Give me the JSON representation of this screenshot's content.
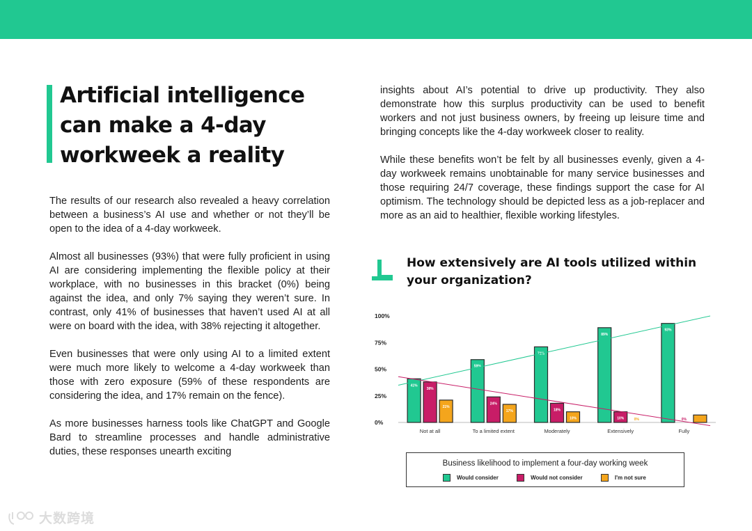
{
  "colors": {
    "accent": "#21c891",
    "would_consider": "#21c891",
    "would_not_consider": "#c81d67",
    "not_sure": "#f4a51c",
    "trend_green": "#21c891",
    "trend_pink": "#c81d67"
  },
  "title": "Artificial intelligence can make a 4-day workweek a reality",
  "left_column": {
    "paragraphs": [
      "The results of our research also revealed a heavy correlation between a business’s AI use and whether or not they’ll be open to the idea of a 4-day workweek.",
      "Almost all businesses (93%) that were fully proficient in using AI are considering implementing the flexible policy at their workplace, with no businesses in this bracket (0%) being against the idea, and only 7% saying they weren’t sure. In contrast, only 41% of businesses that haven’t used AI at all were on board with the idea, with 38% rejecting it altogether.",
      "Even businesses that were only using AI to a limited extent were much more likely to welcome a 4-day workweek than those with zero exposure (59% of these respondents are considering the idea, and 17% remain on the fence).",
      "As more businesses harness tools like ChatGPT and Google Bard to streamline processes and handle administrative duties, these responses unearth exciting"
    ]
  },
  "right_column": {
    "paragraphs": [
      "insights about AI’s potential to drive up productivity. They also demonstrate how this surplus productivity can be used to benefit workers and not just business owners, by freeing up leisure time and bringing concepts like the 4-day workweek closer to reality.",
      "While these benefits won’t be felt by all businesses evenly, given a 4-day workweek remains unobtainable for many service businesses and those requiring 24/7 coverage, these findings support the case for AI optimism. The technology should be depicted less as a job-replacer and more as an aid to healthier, flexible working lifestyles."
    ]
  },
  "chart_heading": "How extensively are AI tools utilized within your organization?",
  "chart_data": {
    "type": "bar",
    "title": "How extensively are AI tools utilized within your organization?",
    "categories": [
      "Not at all",
      "To a limited extent",
      "Moderately",
      "Extensively",
      "Fully"
    ],
    "series": [
      {
        "name": "Would consider",
        "values": [
          41,
          59,
          71,
          89,
          93
        ],
        "labels": [
          "41%",
          "59%",
          "71%",
          "89%",
          "93%"
        ]
      },
      {
        "name": "Would not consider",
        "values": [
          38,
          24,
          18,
          10,
          0
        ],
        "labels": [
          "38%",
          "24%",
          "18%",
          "10%",
          "0%"
        ]
      },
      {
        "name": "I'm not sure",
        "values": [
          21,
          17,
          10,
          0,
          7
        ],
        "labels": [
          "21%",
          "17%",
          "10%",
          "0%",
          "7%"
        ]
      }
    ],
    "yticks": [
      "0%",
      "25%",
      "50%",
      "75%",
      "100%"
    ],
    "ylim": [
      0,
      100
    ],
    "trendlines": [
      {
        "series": "Would consider",
        "start": 35,
        "end": 100
      },
      {
        "series": "Would not consider",
        "start": 43,
        "end": -3
      }
    ],
    "legend_title": "Business likelihood to implement a four-day working week",
    "legend_placement": "bottom",
    "grid": false
  },
  "watermark": "大数跨境"
}
